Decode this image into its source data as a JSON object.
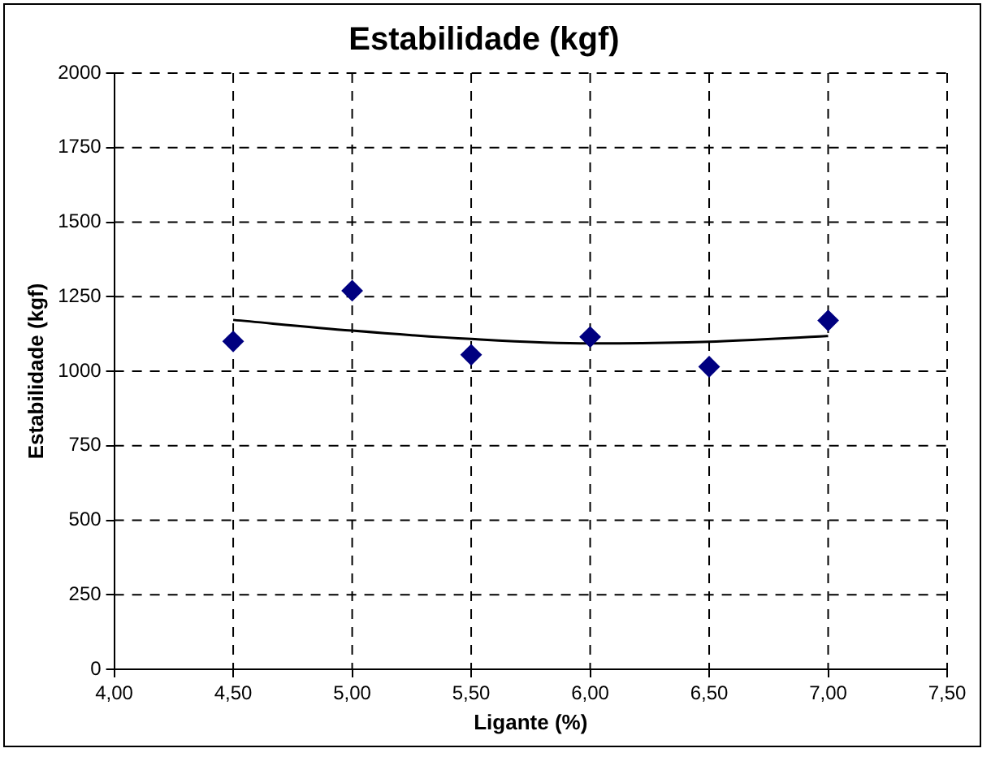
{
  "chart_data": {
    "type": "scatter",
    "title": "Estabilidade (kgf)",
    "xlabel": "Ligante (%)",
    "ylabel": "Estabilidade (kgf)",
    "xlim": [
      4,
      7.5
    ],
    "xticks": [
      {
        "value": 4,
        "label": "4,00"
      },
      {
        "value": 4.5,
        "label": "4,50"
      },
      {
        "value": 5,
        "label": "5,00"
      },
      {
        "value": 5.5,
        "label": "5,50"
      },
      {
        "value": 6,
        "label": "6,00"
      },
      {
        "value": 6.5,
        "label": "6,50"
      },
      {
        "value": 7,
        "label": "7,00"
      },
      {
        "value": 7.5,
        "label": "7,50"
      }
    ],
    "ylim": [
      0,
      2000
    ],
    "yticks": [
      0,
      250,
      500,
      750,
      1000,
      1250,
      1500,
      1750,
      2000
    ],
    "grid": true,
    "legend": false,
    "series": [
      {
        "color": "#000080",
        "marker": "diamond",
        "x": [
          4.5,
          5,
          5.5,
          6,
          6.5,
          7
        ],
        "values": [
          1100,
          1270,
          1055,
          1115,
          1015,
          1170
        ]
      },
      {
        "type": "line",
        "color": "#000000",
        "marker": "none",
        "x": [
          4.5,
          5,
          5.5,
          6,
          6.5,
          7
        ],
        "values": [
          1172,
          1136,
          1108,
          1093,
          1099,
          1118
        ]
      }
    ]
  }
}
